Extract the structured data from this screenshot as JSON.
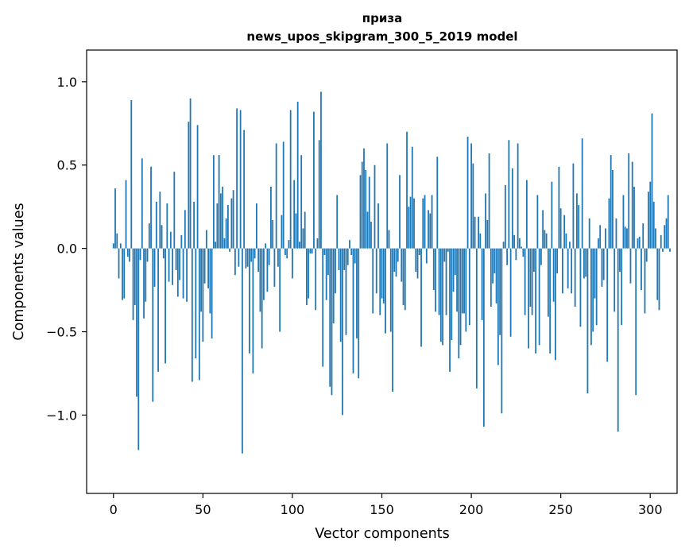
{
  "chart_data": {
    "type": "bar",
    "title": "приза",
    "subtitle": "news_upos_skipgram_300_5_2019 model",
    "xlabel": "Vector components",
    "ylabel": "Components values",
    "xlim": [
      -15,
      315
    ],
    "ylim": [
      -1.47,
      1.19
    ],
    "xticks": [
      0,
      50,
      100,
      150,
      200,
      250,
      300
    ],
    "yticks": [
      -1.0,
      -0.5,
      0.0,
      0.5,
      1.0
    ],
    "ytick_labels": [
      "−1.0",
      "−0.5",
      "0.0",
      "0.5",
      "1.0"
    ],
    "bar_color": "#1f77b4",
    "values": [
      0.03,
      0.36,
      0.09,
      -0.18,
      0.03,
      -0.31,
      -0.3,
      0.41,
      -0.05,
      -0.08,
      0.89,
      -0.43,
      -0.34,
      -0.89,
      -1.21,
      -0.07,
      0.54,
      -0.42,
      -0.32,
      -0.08,
      0.15,
      0.49,
      -0.92,
      -0.23,
      0.28,
      -0.74,
      0.34,
      0.14,
      -0.06,
      -0.69,
      0.27,
      -0.2,
      0.1,
      -0.22,
      0.46,
      -0.13,
      -0.29,
      -0.19,
      0.08,
      -0.3,
      0.23,
      -0.32,
      0.76,
      0.9,
      -0.8,
      0.28,
      -0.66,
      0.74,
      -0.79,
      -0.38,
      -0.56,
      -0.21,
      0.11,
      -0.24,
      -0.39,
      -0.54,
      0.56,
      0.04,
      0.27,
      0.56,
      0.33,
      0.37,
      0.06,
      0.18,
      0.26,
      -0.02,
      0.3,
      0.35,
      -0.16,
      0.84,
      -0.11,
      0.83,
      -1.23,
      0.71,
      -0.12,
      -0.11,
      -0.63,
      -0.08,
      -0.75,
      -0.06,
      0.27,
      -0.14,
      -0.38,
      -0.6,
      -0.31,
      0.03,
      -0.26,
      -0.1,
      0.37,
      0.17,
      -0.23,
      0.63,
      -0.11,
      -0.5,
      0.2,
      0.64,
      -0.04,
      -0.06,
      0.05,
      0.83,
      -0.18,
      0.41,
      0.21,
      0.88,
      0.04,
      0.56,
      0.12,
      0.22,
      -0.34,
      -0.3,
      -0.03,
      -0.03,
      0.82,
      -0.37,
      0.06,
      0.65,
      0.94,
      -0.71,
      -0.04,
      -0.31,
      -0.16,
      -0.83,
      -0.88,
      -0.45,
      -0.27,
      0.32,
      -0.13,
      -0.56,
      -1.0,
      -0.13,
      -0.52,
      -0.1,
      0.05,
      -0.04,
      -0.75,
      -0.09,
      -0.54,
      -0.78,
      0.44,
      0.52,
      0.6,
      0.47,
      0.22,
      0.43,
      0.16,
      -0.39,
      0.5,
      -0.27,
      0.27,
      -0.4,
      -0.3,
      -0.33,
      -0.51,
      0.63,
      0.11,
      -0.5,
      -0.86,
      -0.14,
      -0.17,
      -0.08,
      0.44,
      -0.2,
      -0.34,
      -0.37,
      0.7,
      0.25,
      0.31,
      0.61,
      0.3,
      -0.14,
      -0.18,
      -0.04,
      -0.59,
      0.3,
      0.32,
      -0.09,
      0.23,
      0.21,
      0.32,
      -0.25,
      -0.38,
      0.55,
      -0.4,
      -0.56,
      -0.58,
      -0.08,
      -0.4,
      -0.02,
      -0.74,
      -0.55,
      -0.26,
      -0.16,
      -0.38,
      -0.66,
      -0.58,
      -0.39,
      -0.39,
      -0.5,
      0.67,
      -0.46,
      0.63,
      0.51,
      0.19,
      -0.84,
      0.19,
      0.09,
      -0.43,
      -1.07,
      0.33,
      0.17,
      0.57,
      -0.35,
      -0.21,
      -0.15,
      -0.33,
      -0.7,
      -0.52,
      -0.99,
      0.04,
      0.38,
      -0.1,
      0.65,
      -0.53,
      0.48,
      0.08,
      -0.07,
      0.63,
      0.06,
      0.01,
      -0.05,
      -0.4,
      0.41,
      -0.6,
      -0.35,
      -0.4,
      -0.14,
      -0.63,
      0.32,
      -0.58,
      -0.1,
      0.23,
      0.11,
      0.09,
      -0.41,
      -0.63,
      0.4,
      -0.32,
      -0.67,
      -0.15,
      0.49,
      0.24,
      -0.27,
      0.2,
      0.09,
      -0.24,
      0.04,
      -0.27,
      0.51,
      -0.35,
      0.33,
      0.26,
      -0.47,
      0.66,
      -0.18,
      -0.17,
      -0.87,
      0.18,
      -0.58,
      -0.5,
      -0.3,
      -0.46,
      0.06,
      0.14,
      -0.23,
      -0.19,
      0.12,
      -0.68,
      0.3,
      0.56,
      0.47,
      -0.38,
      0.18,
      -1.1,
      -0.14,
      -0.46,
      0.32,
      0.13,
      0.12,
      0.57,
      -0.21,
      0.52,
      0.37,
      -0.88,
      0.06,
      0.07,
      -0.25,
      0.15,
      -0.39,
      -0.08,
      0.34,
      0.4,
      0.81,
      0.28,
      0.12,
      -0.31,
      -0.37,
      0.08,
      -0.02,
      0.14,
      0.18,
      0.32,
      -0.02
    ]
  }
}
